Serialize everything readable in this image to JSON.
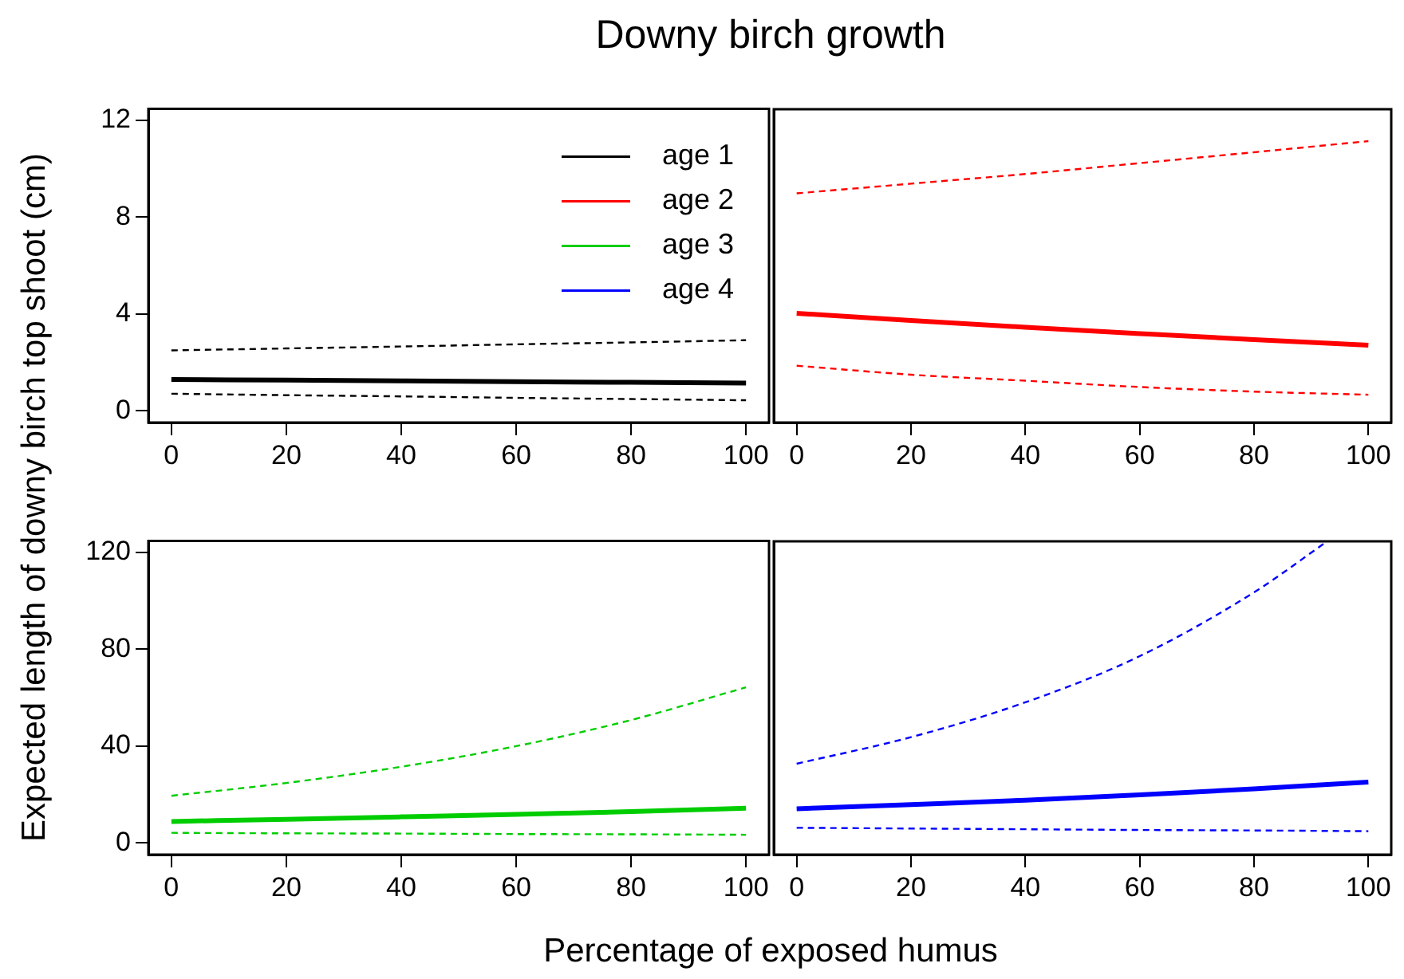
{
  "chart_data": [
    {
      "type": "line",
      "title": "Downy birch growth",
      "xlabel": "Percentage of exposed humus",
      "ylabel": "Expected length of downy birch top shoot (cm)",
      "x": [
        0,
        20,
        40,
        60,
        80,
        100
      ],
      "xlim": [
        -4,
        104
      ],
      "xticks": [
        0,
        20,
        40,
        60,
        80,
        100
      ],
      "ylim": [
        -0.48,
        12.48
      ],
      "yticks": [
        0,
        4,
        8,
        12
      ],
      "grid": false,
      "legend": "top right",
      "marker": "none",
      "series": [
        {
          "name": "age 1",
          "color": "#000000",
          "values": [
            1.3,
            1.27,
            1.24,
            1.21,
            1.18,
            1.15
          ],
          "line_style": "solid"
        },
        {
          "color": "#000000",
          "values": [
            2.5,
            2.58,
            2.66,
            2.75,
            2.83,
            2.92
          ],
          "line_style": "dashed"
        },
        {
          "color": "#000000",
          "values": [
            0.71,
            0.65,
            0.6,
            0.54,
            0.49,
            0.44
          ],
          "line_style": "dashed"
        }
      ]
    },
    {
      "type": "line",
      "x": [
        0,
        20,
        40,
        60,
        80,
        100
      ],
      "xlim": [
        -4,
        104
      ],
      "xticks": [
        0,
        20,
        40,
        60,
        80,
        100
      ],
      "ylim": [
        -0.48,
        12.48
      ],
      "yticks": [
        0,
        4,
        8,
        12
      ],
      "grid": false,
      "tick_labels": "x",
      "marker": "none",
      "series": [
        {
          "name": "age 2",
          "color": "#ff0000",
          "values": [
            4.04,
            3.74,
            3.46,
            3.2,
            2.95,
            2.72
          ],
          "line_style": "solid"
        },
        {
          "color": "#ff0000",
          "values": [
            9.0,
            9.4,
            9.8,
            10.25,
            10.7,
            11.16
          ],
          "line_style": "dashed"
        },
        {
          "color": "#ff0000",
          "values": [
            1.87,
            1.5,
            1.25,
            0.99,
            0.8,
            0.67
          ],
          "line_style": "dashed"
        }
      ]
    },
    {
      "type": "line",
      "x": [
        0,
        20,
        40,
        60,
        80,
        100
      ],
      "xlim": [
        -4,
        104
      ],
      "xticks": [
        0,
        20,
        40,
        60,
        80,
        100
      ],
      "ylim": [
        -4.8,
        124.8
      ],
      "yticks": [
        0,
        40,
        80,
        120
      ],
      "grid": false,
      "marker": "none",
      "series": [
        {
          "name": "age 3",
          "color": "#00cd00",
          "values": [
            8.9,
            9.8,
            10.8,
            11.8,
            13.0,
            14.4
          ],
          "line_style": "solid"
        },
        {
          "color": "#00cd00",
          "values": [
            19.5,
            24.8,
            31.5,
            40.0,
            50.8,
            64.3
          ],
          "line_style": "dashed"
        },
        {
          "color": "#00cd00",
          "values": [
            4.2,
            4.0,
            3.9,
            3.7,
            3.6,
            3.4
          ],
          "line_style": "dashed"
        }
      ]
    },
    {
      "type": "line",
      "x": [
        0,
        20,
        40,
        60,
        80,
        100
      ],
      "xlim": [
        -4,
        104
      ],
      "xticks": [
        0,
        20,
        40,
        60,
        80,
        100
      ],
      "ylim": [
        -4.8,
        124.8
      ],
      "yticks": [
        0,
        40,
        80,
        120
      ],
      "grid": false,
      "tick_labels": "x",
      "marker": "none",
      "series": [
        {
          "name": "age 4",
          "color": "#0000ff",
          "values": [
            14.2,
            15.9,
            17.7,
            19.9,
            22.4,
            25.2
          ],
          "line_style": "solid"
        },
        {
          "color": "#0000ff",
          "x": [
            0,
            20,
            40,
            60,
            80,
            92.8
          ],
          "values": [
            32.8,
            43.8,
            58.2,
            77.3,
            103.7,
            124.8
          ],
          "line_style": "dashed"
        },
        {
          "color": "#0000ff",
          "values": [
            6.3,
            6.0,
            5.7,
            5.4,
            5.2,
            4.9
          ],
          "line_style": "dashed"
        }
      ]
    }
  ]
}
